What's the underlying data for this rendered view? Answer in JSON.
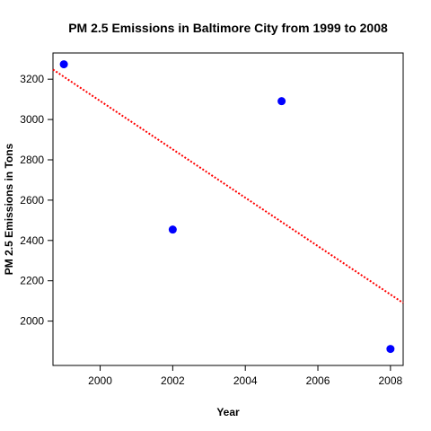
{
  "chart_data": {
    "type": "scatter",
    "title": "PM 2.5 Emissions in Baltimore City from 1999 to 2008",
    "xlabel": "Year",
    "ylabel": "PM 2.5 Emissions in Tons",
    "xlim": [
      1998.7,
      2008.35
    ],
    "ylim": [
      1780,
      3330
    ],
    "xticks": [
      2000,
      2002,
      2004,
      2006,
      2008
    ],
    "yticks": [
      2000,
      2200,
      2400,
      2600,
      2800,
      3000,
      3200
    ],
    "grid": false,
    "legend": "none",
    "series": [
      {
        "points": [
          {
            "x": 1999,
            "y": 3274
          },
          {
            "x": 2002,
            "y": 2454
          },
          {
            "x": 2005,
            "y": 3091
          },
          {
            "x": 2008,
            "y": 1862
          }
        ]
      }
    ],
    "trendline": {
      "style": "dotted",
      "points": [
        {
          "x": 1998.7,
          "y": 3248
        },
        {
          "x": 2008.35,
          "y": 2090
        }
      ]
    },
    "colors": {
      "points": "#0000ff",
      "trendline": "#ff0000",
      "axis": "#000000"
    }
  }
}
